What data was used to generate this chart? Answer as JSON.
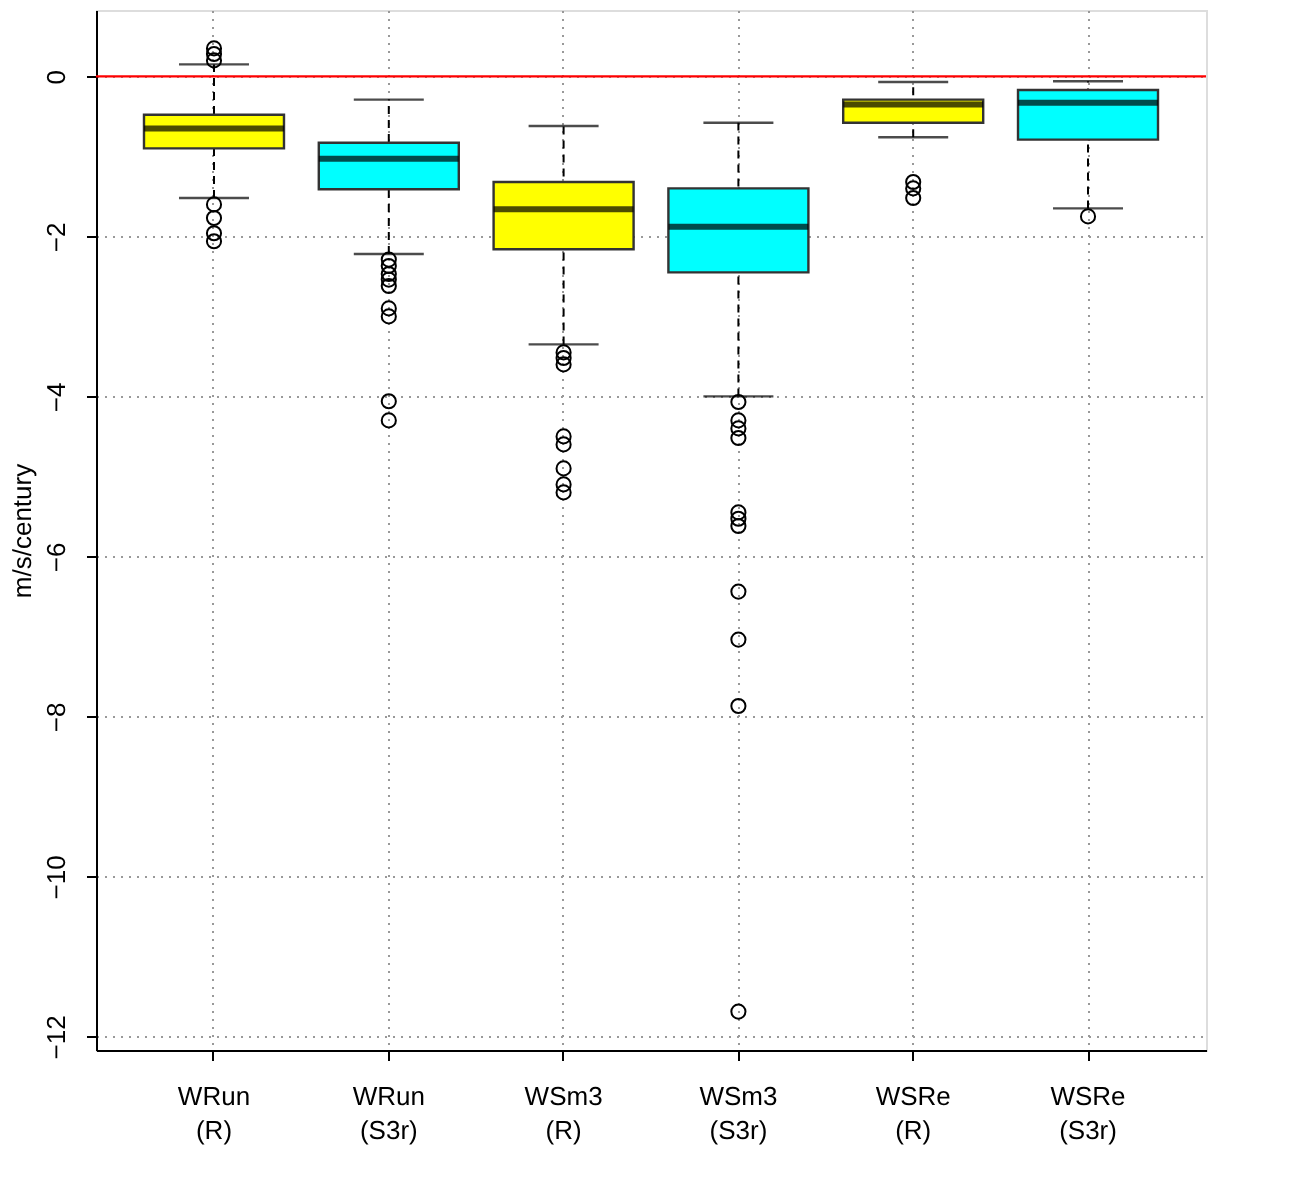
{
  "chart_data": {
    "type": "box",
    "ylabel": "m/s/century",
    "categories": [
      "WRun\n(R)",
      "WRun\n(S3r)",
      "WSm3\n(R)",
      "WSm3\n(S3r)",
      "WSRe\n(R)",
      "WSRe\n(S3r)"
    ],
    "colors": [
      "#ffff00",
      "#00ffff",
      "#ffff00",
      "#00ffff",
      "#ffff00",
      "#00ffff"
    ],
    "boxes": [
      {
        "low": -1.52,
        "q1": -0.9,
        "median": -0.65,
        "q3": -0.48,
        "high": 0.15,
        "outliers": [
          0.35,
          0.28,
          0.2,
          -1.6,
          -1.77,
          -1.96,
          -2.06
        ]
      },
      {
        "low": -2.22,
        "q1": -1.41,
        "median": -1.03,
        "q3": -0.83,
        "high": -0.29,
        "outliers": [
          -2.29,
          -2.37,
          -2.47,
          -2.54,
          -2.62,
          -2.9,
          -3.0,
          -4.06,
          -4.3
        ]
      },
      {
        "low": -3.35,
        "q1": -2.16,
        "median": -1.66,
        "q3": -1.32,
        "high": -0.62,
        "outliers": [
          -3.45,
          -3.52,
          -3.6,
          -4.5,
          -4.6,
          -4.9,
          -5.1,
          -5.2
        ]
      },
      {
        "low": -4.0,
        "q1": -2.45,
        "median": -1.88,
        "q3": -1.4,
        "high": -0.58,
        "outliers": [
          -4.07,
          -4.3,
          -4.4,
          -4.52,
          -5.45,
          -5.53,
          -5.62,
          -6.44,
          -7.04,
          -7.87,
          -11.69
        ]
      },
      {
        "low": -0.76,
        "q1": -0.58,
        "median": -0.35,
        "q3": -0.29,
        "high": -0.07,
        "outliers": [
          -1.32,
          -1.4,
          -1.52
        ]
      },
      {
        "low": -1.65,
        "q1": -0.79,
        "median": -0.33,
        "q3": -0.17,
        "high": -0.06,
        "outliers": [
          -1.75
        ]
      }
    ],
    "ylim": [
      -12.17,
      0.83
    ],
    "yticks": [
      0,
      -2,
      -4,
      -6,
      -8,
      -10,
      -12
    ],
    "ref_lines": [
      {
        "axis": "y",
        "value": 0,
        "color": "#ff0000"
      }
    ],
    "grid": true
  }
}
